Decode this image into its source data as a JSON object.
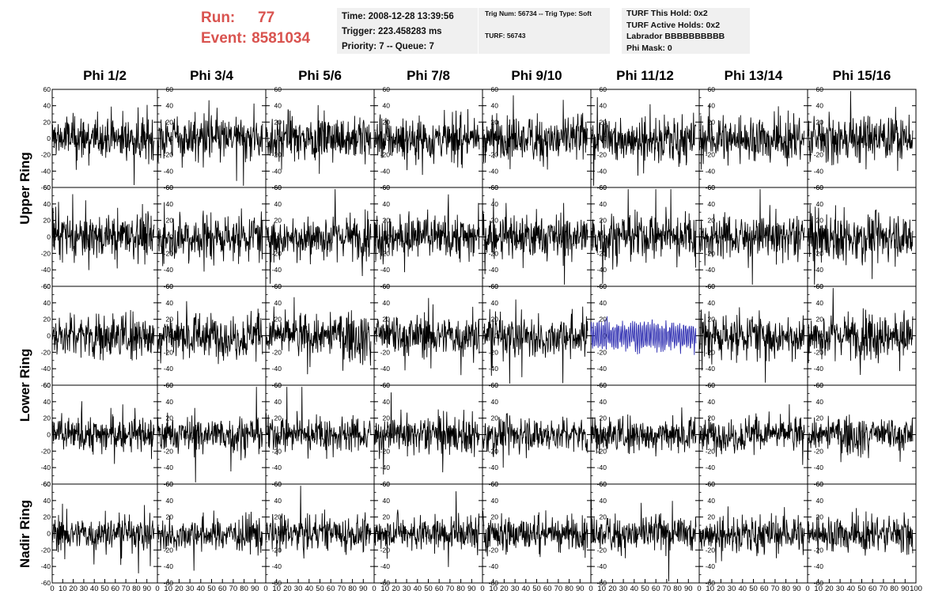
{
  "header": {
    "run_label": "Run:",
    "run_value": "77",
    "event_label": "Event:",
    "event_value": "8581034",
    "time": "Time: 2008-12-28 13:39:56",
    "trigger": "Trigger: 223.458283 ms",
    "priority": "Priority: 7 -- Queue: 7",
    "trig_num": "Trig Num: 56734 -- Trig Type: Soft",
    "turf": "TURF: 56743",
    "turf_this_hold": "TURF This Hold: 0x2",
    "turf_active_holds": "TURF Active Holds: 0x2",
    "labrador": "Labrador BBBBBBBBBB",
    "phi_mask": "Phi Mask: 0"
  },
  "chart_data": {
    "type": "line",
    "columns": [
      "Phi 1/2",
      "Phi 3/4",
      "Phi 5/6",
      "Phi 7/8",
      "Phi 9/10",
      "Phi 11/12",
      "Phi 13/14",
      "Phi 15/16"
    ],
    "ring_labels": [
      {
        "label": "Upper Ring",
        "rows": [
          0,
          1
        ]
      },
      {
        "label": "Lower Ring",
        "rows": [
          2,
          3
        ]
      },
      {
        "label": "Nadir Ring",
        "rows": [
          4
        ]
      }
    ],
    "rows": 5,
    "ylim": [
      -60,
      60
    ],
    "yticks": [
      -60,
      -40,
      -20,
      0,
      20,
      40,
      60
    ],
    "xlim": [
      0,
      100
    ],
    "xticks": [
      0,
      10,
      20,
      30,
      40,
      50,
      60,
      70,
      80,
      90,
      100
    ],
    "xticks_last_panel": [
      0,
      10,
      20,
      30,
      40,
      50,
      60,
      70,
      80,
      90,
      100
    ],
    "samples_per_trace": 260,
    "trace_x_end": 97,
    "trace_color": "#000000",
    "highlight_color": "#2b2bb0",
    "highlight_panel": {
      "row": 2,
      "col": 5
    },
    "row_amplitude": [
      14,
      14,
      14,
      11,
      11
    ]
  }
}
